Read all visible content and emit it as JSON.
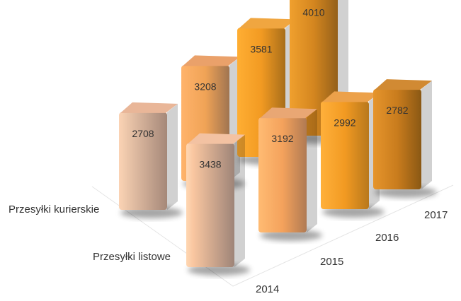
{
  "chart_data": {
    "type": "bar",
    "subtype": "3d-column-grid",
    "categories": [
      "2014",
      "2015",
      "2016",
      "2017"
    ],
    "series": [
      {
        "name": "Przesyłki kurierskie",
        "values": [
          2708,
          3208,
          3581,
          4010
        ]
      },
      {
        "name": "Przesyłki listowe",
        "values": [
          3438,
          3192,
          2992,
          2782
        ]
      }
    ],
    "title": "",
    "grid": false,
    "legend": "none",
    "colors": {
      "front_2014": "#e6a57c",
      "front_2015": "#e8913c",
      "front_2016": "#ef9422",
      "front_2017": "#d47f1f",
      "back_2014": "#e0ac88",
      "back_2015": "#f0a356",
      "back_2016": "#f39b26",
      "back_2017": "#d88a1e"
    }
  }
}
